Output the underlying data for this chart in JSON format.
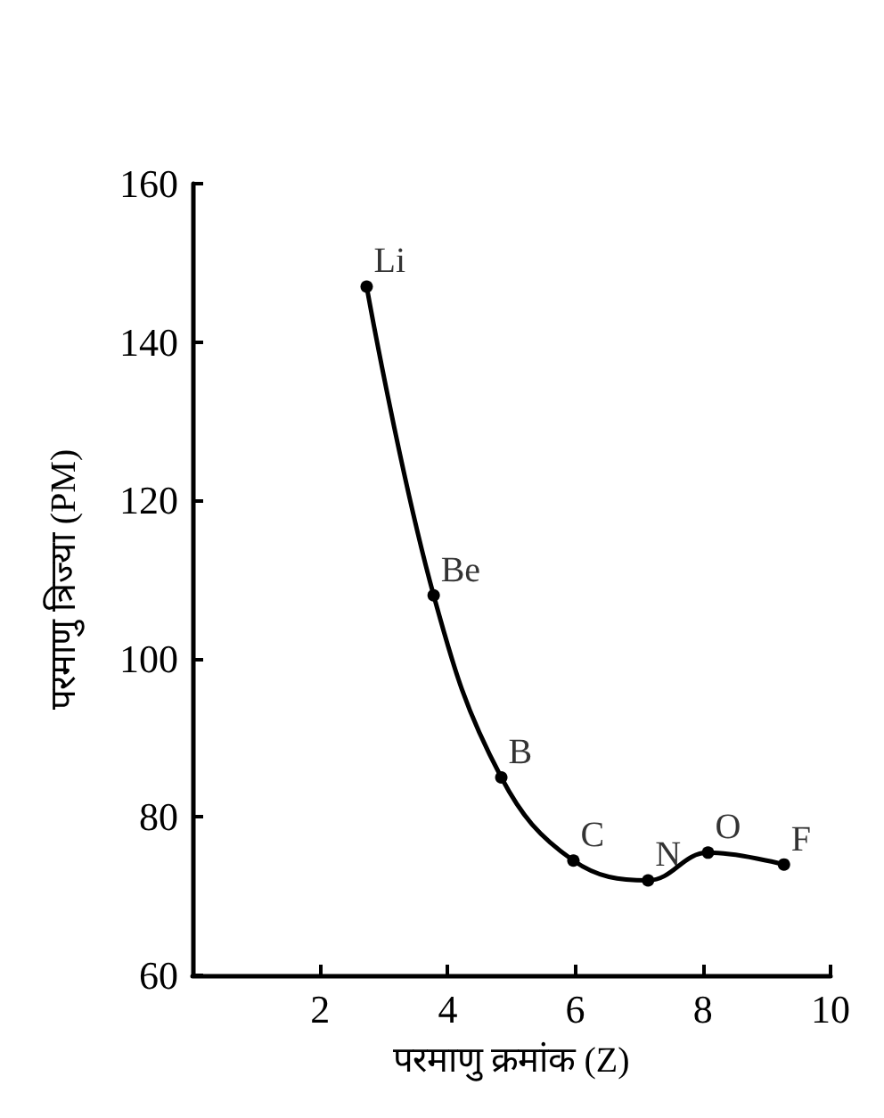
{
  "chart_data": {
    "type": "line",
    "xlabel": "परमाणु क्रमांक (Z)",
    "ylabel": "परमाणु त्रिज्या (PM)",
    "x": [
      2.73,
      3.78,
      4.84,
      5.97,
      7.14,
      8.08,
      9.27
    ],
    "series": [
      {
        "color": "#000000",
        "values": [
          147,
          108,
          85,
          74.5,
          72,
          75.5,
          74
        ]
      }
    ],
    "xlim": [
      0,
      10
    ],
    "xticks": [
      2,
      4,
      6,
      8,
      10
    ],
    "ylim": [
      60,
      160
    ],
    "yticks": [
      60,
      80,
      100,
      120,
      140,
      160
    ],
    "marker": "circle",
    "line_style": "solid",
    "annotations": [
      {
        "text": "Li",
        "x": 2.73,
        "y": 147
      },
      {
        "text": "Be",
        "x": 3.78,
        "y": 108
      },
      {
        "text": "B",
        "x": 4.84,
        "y": 85
      },
      {
        "text": "C",
        "x": 5.97,
        "y": 74.5
      },
      {
        "text": "N",
        "x": 7.14,
        "y": 72
      },
      {
        "text": "O",
        "x": 8.08,
        "y": 75.5
      },
      {
        "text": "F",
        "x": 9.27,
        "y": 74
      }
    ]
  }
}
